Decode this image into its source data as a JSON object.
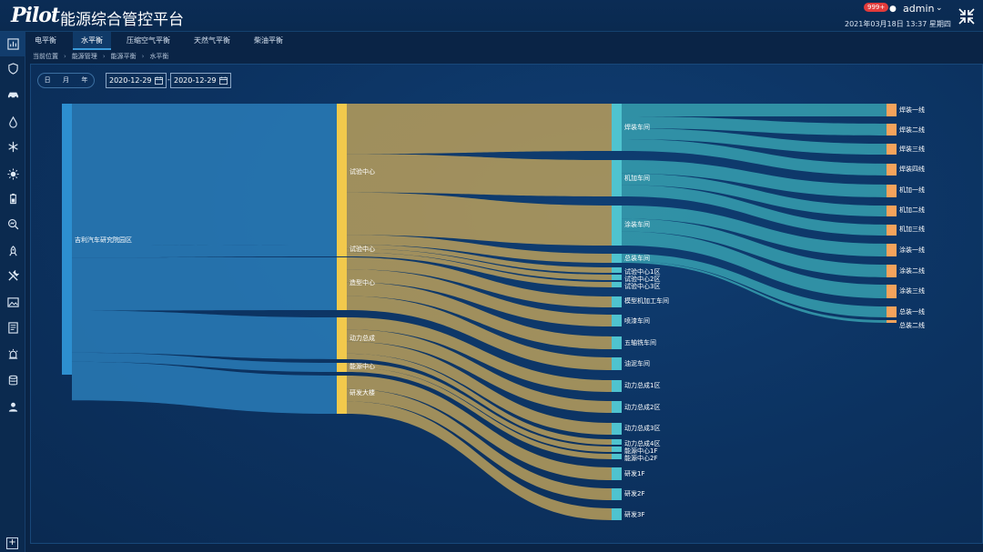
{
  "header": {
    "logo": "Pilot",
    "title": "能源综合管控平台",
    "badge": "999+",
    "username": "admin",
    "datetime": "2021年03月18日 13:37 星期四"
  },
  "tabs": [
    {
      "label": "电平衡",
      "active": false
    },
    {
      "label": "水平衡",
      "active": true
    },
    {
      "label": "压缩空气平衡",
      "active": false
    },
    {
      "label": "天然气平衡",
      "active": false
    },
    {
      "label": "柴油平衡",
      "active": false
    }
  ],
  "breadcrumb": [
    "当前位置",
    "能源管理",
    "能源平衡",
    "水平衡"
  ],
  "filters": {
    "period_options": [
      "日",
      "月",
      "年"
    ],
    "start_date": "2020-12-29",
    "end_date": "2020-12-29",
    "date_separator": "-"
  },
  "sidebar_icons": [
    "dashboard-icon",
    "shield-icon",
    "car-icon",
    "water-drop-icon",
    "snowflake-icon",
    "sun-icon",
    "battery-icon",
    "search-chart-icon",
    "rocket-icon",
    "tools-icon",
    "image-icon",
    "report-icon",
    "alarm-icon",
    "database-icon",
    "user-icon"
  ],
  "sankey": {
    "root": "吉利汽车研究院园区",
    "level1": [
      "试验中心",
      "试验中心",
      "造型中心",
      "动力总成",
      "能源中心",
      "研发大楼"
    ],
    "level2": [
      "焊装车间",
      "机加车间",
      "涂装车间",
      "总装车间",
      "试验中心1区",
      "试验中心2区",
      "试验中心3区",
      "模型机加工车间",
      "喷漆车间",
      "五轴铣车间",
      "油泥车间",
      "动力总成1区",
      "动力总成2区",
      "动力总成3区",
      "动力总成4区",
      "能源中心1F",
      "能源中心2F",
      "研发1F",
      "研发2F",
      "研发3F"
    ],
    "level3": [
      "焊装一线",
      "焊装二线",
      "焊装三线",
      "焊装四线",
      "机加一线",
      "机加二线",
      "机加三线",
      "涂装一线",
      "涂装二线",
      "涂装三线",
      "总装一线",
      "总装二线"
    ],
    "colors": {
      "root": "#2d8fd0",
      "level1": "#f2c94c",
      "level2": "#4fc3cf",
      "level3": "#f5a35c",
      "link_root": "#2a7db8",
      "link_l1": "#c9a85a",
      "link_l2": "#3aa6b4"
    }
  }
}
